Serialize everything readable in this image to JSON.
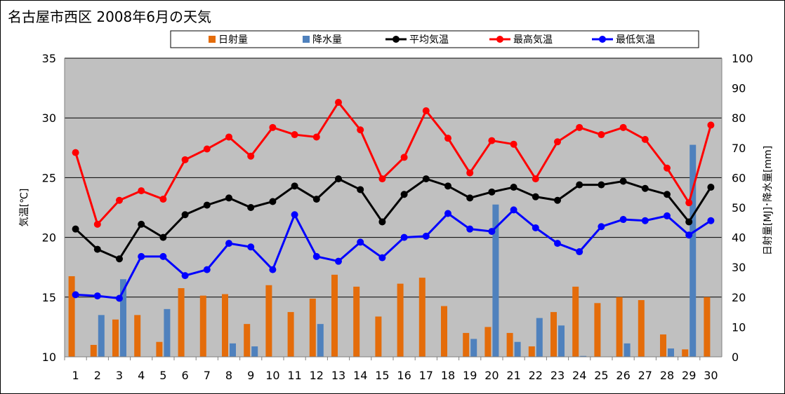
{
  "chart_data": {
    "type": "bar+line",
    "title": "名古屋市西区  2008年6月の天気",
    "ylabel_left": "気温[℃]",
    "ylabel_right": "日射量[MJ]･降水量[mm]",
    "ylim_left": [
      10,
      35
    ],
    "ylim_right": [
      0,
      100
    ],
    "yticks_left": [
      "10",
      "15",
      "20",
      "25",
      "30",
      "35"
    ],
    "yticks_right": [
      "0",
      "10",
      "20",
      "30",
      "40",
      "50",
      "60",
      "70",
      "80",
      "90",
      "100"
    ],
    "categories": [
      "1",
      "2",
      "3",
      "4",
      "5",
      "6",
      "7",
      "8",
      "9",
      "10",
      "11",
      "12",
      "13",
      "14",
      "15",
      "16",
      "17",
      "18",
      "19",
      "20",
      "21",
      "22",
      "23",
      "24",
      "25",
      "26",
      "27",
      "28",
      "29",
      "30"
    ],
    "grid": true,
    "legend_position": "top",
    "plot_bg": "#c0c0c0",
    "series": [
      {
        "name": "日射量",
        "type": "bar",
        "axis": "right",
        "color": "#e46c0a",
        "values": [
          27,
          4,
          12.5,
          14,
          5,
          23,
          20.5,
          21,
          11,
          24,
          15,
          19.5,
          27.5,
          23.5,
          13.5,
          24.5,
          26.5,
          17,
          8,
          10,
          8,
          3.5,
          15,
          23.5,
          18,
          20,
          19,
          7.5,
          2.5,
          20
        ]
      },
      {
        "name": "降水量",
        "type": "bar",
        "axis": "right",
        "color": "#4f81bd",
        "values": [
          0,
          14,
          26,
          0,
          16,
          0,
          0,
          4.5,
          3.5,
          0,
          0,
          11,
          0,
          0,
          0,
          0,
          0,
          0,
          6,
          51,
          5,
          13,
          10.5,
          0.3,
          0,
          4.5,
          0,
          2.8,
          71,
          0
        ]
      },
      {
        "name": "平均気温",
        "type": "line",
        "axis": "left",
        "color": "#000000",
        "values": [
          20.7,
          19,
          18.2,
          21.1,
          20,
          21.9,
          22.7,
          23.3,
          22.5,
          23,
          24.3,
          23.2,
          24.9,
          24,
          21.3,
          23.6,
          24.9,
          24.3,
          23.3,
          23.8,
          24.2,
          23.4,
          23.1,
          24.4,
          24.4,
          24.7,
          24.1,
          23.6,
          21.3,
          24.2
        ]
      },
      {
        "name": "最高気温",
        "type": "line",
        "axis": "left",
        "color": "#ff0000",
        "values": [
          27.1,
          21.1,
          23.1,
          23.9,
          23.2,
          26.5,
          27.4,
          28.4,
          26.8,
          29.2,
          28.6,
          28.4,
          31.3,
          29,
          24.9,
          26.7,
          30.6,
          28.3,
          25.4,
          28.1,
          27.8,
          24.9,
          28,
          29.2,
          28.6,
          29.2,
          28.2,
          25.8,
          22.9,
          29.4
        ]
      },
      {
        "name": "最低気温",
        "type": "line",
        "axis": "left",
        "color": "#0000ff",
        "values": [
          15.2,
          15.1,
          14.9,
          18.4,
          18.4,
          16.8,
          17.3,
          19.5,
          19.2,
          17.3,
          21.9,
          18.4,
          18,
          19.6,
          18.3,
          20,
          20.1,
          22,
          20.7,
          20.5,
          22.3,
          20.8,
          19.5,
          18.8,
          20.9,
          21.5,
          21.4,
          21.8,
          20.2,
          21.4
        ]
      }
    ]
  }
}
